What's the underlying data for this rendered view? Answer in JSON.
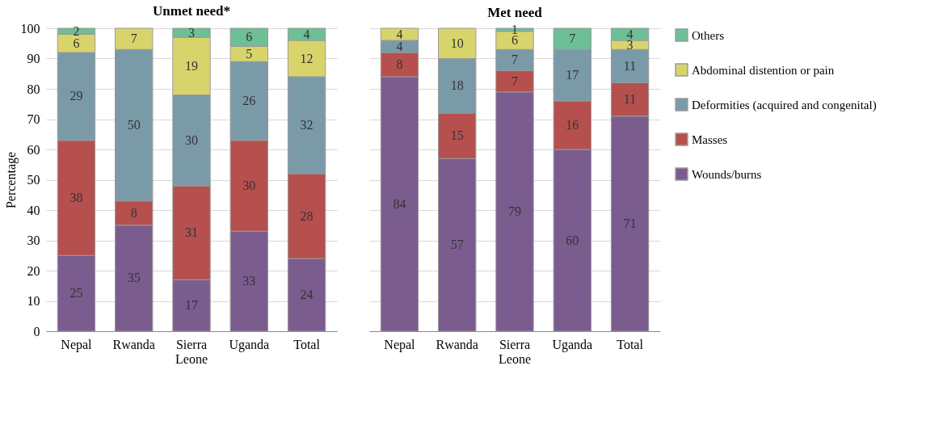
{
  "chart_data": [
    {
      "type": "bar",
      "title": "Unmet need*",
      "ylabel": "Percentage",
      "categories": [
        "Nepal",
        "Rwanda",
        "Sierra Leone",
        "Uganda",
        "Total"
      ],
      "stacked": true,
      "data_labels": true,
      "grid": "y",
      "legend": "right",
      "ylim": [
        0,
        100
      ],
      "yticks": [
        0,
        10,
        20,
        30,
        40,
        50,
        60,
        70,
        80,
        90,
        100
      ],
      "series": [
        {
          "name": "Wounds/burns",
          "color": "#7b5c8f",
          "values": [
            25,
            35,
            17,
            33,
            24
          ]
        },
        {
          "name": "Masses",
          "color": "#b5504f",
          "values": [
            38,
            8,
            31,
            30,
            28
          ]
        },
        {
          "name": "Deformities (acquired and congenital)",
          "color": "#7a9aa8",
          "values": [
            29,
            50,
            30,
            26,
            32
          ]
        },
        {
          "name": "Abdominal distention or pain",
          "color": "#d8d46c",
          "values": [
            6,
            7,
            19,
            5,
            12
          ]
        },
        {
          "name": "Others",
          "color": "#6dbf96",
          "values": [
            2,
            null,
            3,
            6,
            4
          ]
        }
      ]
    },
    {
      "type": "bar",
      "title": "Met need",
      "categories": [
        "Nepal",
        "Rwanda",
        "Sierra Leone",
        "Uganda",
        "Total"
      ],
      "stacked": true,
      "data_labels": true,
      "grid": "y",
      "legend": "right",
      "tick_labels": "x",
      "ylim": [
        0,
        100
      ],
      "yticks": [
        0,
        10,
        20,
        30,
        40,
        50,
        60,
        70,
        80,
        90,
        100
      ],
      "series": [
        {
          "name": "Wounds/burns",
          "color": "#7b5c8f",
          "values": [
            84,
            57,
            79,
            60,
            71
          ]
        },
        {
          "name": "Masses",
          "color": "#b5504f",
          "values": [
            8,
            15,
            7,
            16,
            11
          ]
        },
        {
          "name": "Deformities (acquired and congenital)",
          "color": "#7a9aa8",
          "values": [
            4,
            18,
            7,
            17,
            11
          ]
        },
        {
          "name": "Abdominal distention or pain",
          "color": "#d8d46c",
          "values": [
            4,
            10,
            6,
            null,
            3
          ]
        },
        {
          "name": "Others",
          "color": "#6dbf96",
          "values": [
            null,
            null,
            1,
            7,
            4
          ]
        }
      ]
    }
  ]
}
